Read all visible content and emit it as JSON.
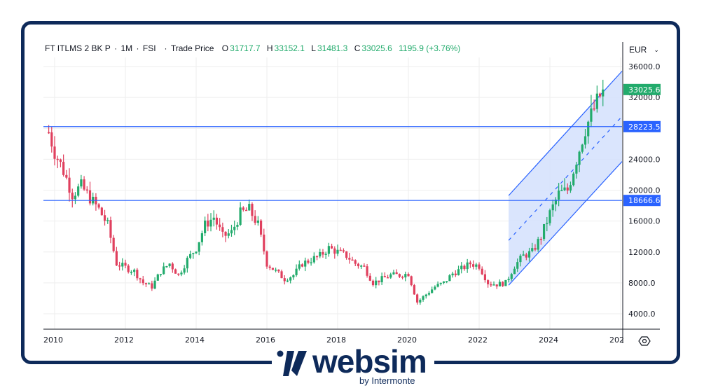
{
  "header": {
    "symbol": "FT ITLMS 2 BK P",
    "interval": "1M",
    "exchange": "FSI",
    "price_type": "Trade Price",
    "ohlc": {
      "o_label": "O",
      "o_value": "31717.7",
      "h_label": "H",
      "h_value": "33152.1",
      "l_label": "L",
      "l_value": "31481.3",
      "c_label": "C",
      "c_value": "33025.6",
      "change": "1195.9 (+3.76%)"
    }
  },
  "currency_selector": {
    "label": "EUR",
    "icon": "chevron-down-icon"
  },
  "price_badges": {
    "last": {
      "value": "33025.6",
      "color": "#22ab6c"
    },
    "line_upper": {
      "value": "28223.5",
      "color": "#2962ff"
    },
    "line_lower": {
      "value": "18666.6",
      "color": "#2962ff"
    }
  },
  "settings_icon": "settings-hexagon-icon",
  "logo": {
    "name": "websim",
    "subtitle": "by Intermonte",
    "color": "#0e2a5a"
  },
  "colors": {
    "up": "#22ab6c",
    "down": "#e0405e",
    "line": "#2962ff",
    "channel_fill": "#d3e0fd",
    "frame": "#0e2a5a",
    "grid": "#eeeeee"
  },
  "chart_data": {
    "type": "candlestick",
    "title": "FT ITLMS 2 BK P · 1M · FSI · Trade Price",
    "xlabel": "",
    "ylabel": "EUR",
    "y_ticks": [
      4000,
      8000,
      12000,
      16000,
      20000,
      24000,
      28000,
      32000,
      36000
    ],
    "y_tick_labels": [
      "4000.0",
      "8000.0",
      "12000.0",
      "16000.0",
      "20000.0",
      "24000.0",
      "28000.0",
      "32000.0",
      "36000.0"
    ],
    "x_tick_labels": [
      "2010",
      "2012",
      "2014",
      "2016",
      "2018",
      "2020",
      "2022",
      "2024",
      "202"
    ],
    "ylim": [
      2000,
      38000
    ],
    "grid": true,
    "horizontal_lines": [
      28223.5,
      18666.6
    ],
    "channel": {
      "start": "2022-11",
      "end": "2025-07",
      "upper_start": 19300,
      "upper_end": 35400,
      "lower_start": 7700,
      "lower_end": 23700,
      "mid_dashed": true
    },
    "series_close_approx": {
      "x": [
        "2009-11",
        "2010-01",
        "2010-04",
        "2010-07",
        "2010-10",
        "2011-01",
        "2011-04",
        "2011-07",
        "2011-10",
        "2012-01",
        "2012-04",
        "2012-07",
        "2012-10",
        "2013-01",
        "2013-04",
        "2013-07",
        "2013-10",
        "2014-01",
        "2014-04",
        "2014-07",
        "2014-10",
        "2015-01",
        "2015-04",
        "2015-07",
        "2015-10",
        "2016-01",
        "2016-04",
        "2016-07",
        "2016-10",
        "2017-01",
        "2017-04",
        "2017-07",
        "2017-10",
        "2018-01",
        "2018-04",
        "2018-07",
        "2018-10",
        "2019-01",
        "2019-04",
        "2019-07",
        "2019-10",
        "2020-01",
        "2020-04",
        "2020-07",
        "2020-10",
        "2021-01",
        "2021-04",
        "2021-07",
        "2021-10",
        "2022-01",
        "2022-04",
        "2022-07",
        "2022-10",
        "2023-01",
        "2023-04",
        "2023-07",
        "2023-10",
        "2024-01",
        "2024-04",
        "2024-07",
        "2024-10",
        "2025-01",
        "2025-04",
        "2025-07"
      ],
      "values": [
        27500,
        25000,
        22500,
        19500,
        20500,
        19000,
        17500,
        15500,
        10500,
        10000,
        9500,
        8000,
        7500,
        9500,
        10500,
        9000,
        11000,
        12500,
        15500,
        16500,
        14000,
        14500,
        17000,
        17500,
        15500,
        10500,
        9500,
        8500,
        9000,
        10500,
        11000,
        11500,
        12500,
        12000,
        11500,
        10500,
        10000,
        8000,
        8500,
        9000,
        9000,
        9200,
        5500,
        6500,
        7500,
        8000,
        9200,
        9800,
        10500,
        10200,
        8000,
        7800,
        8000,
        10200,
        11500,
        12000,
        14000,
        17000,
        19500,
        20000,
        24000,
        28000,
        30500,
        33025.6
      ]
    }
  }
}
